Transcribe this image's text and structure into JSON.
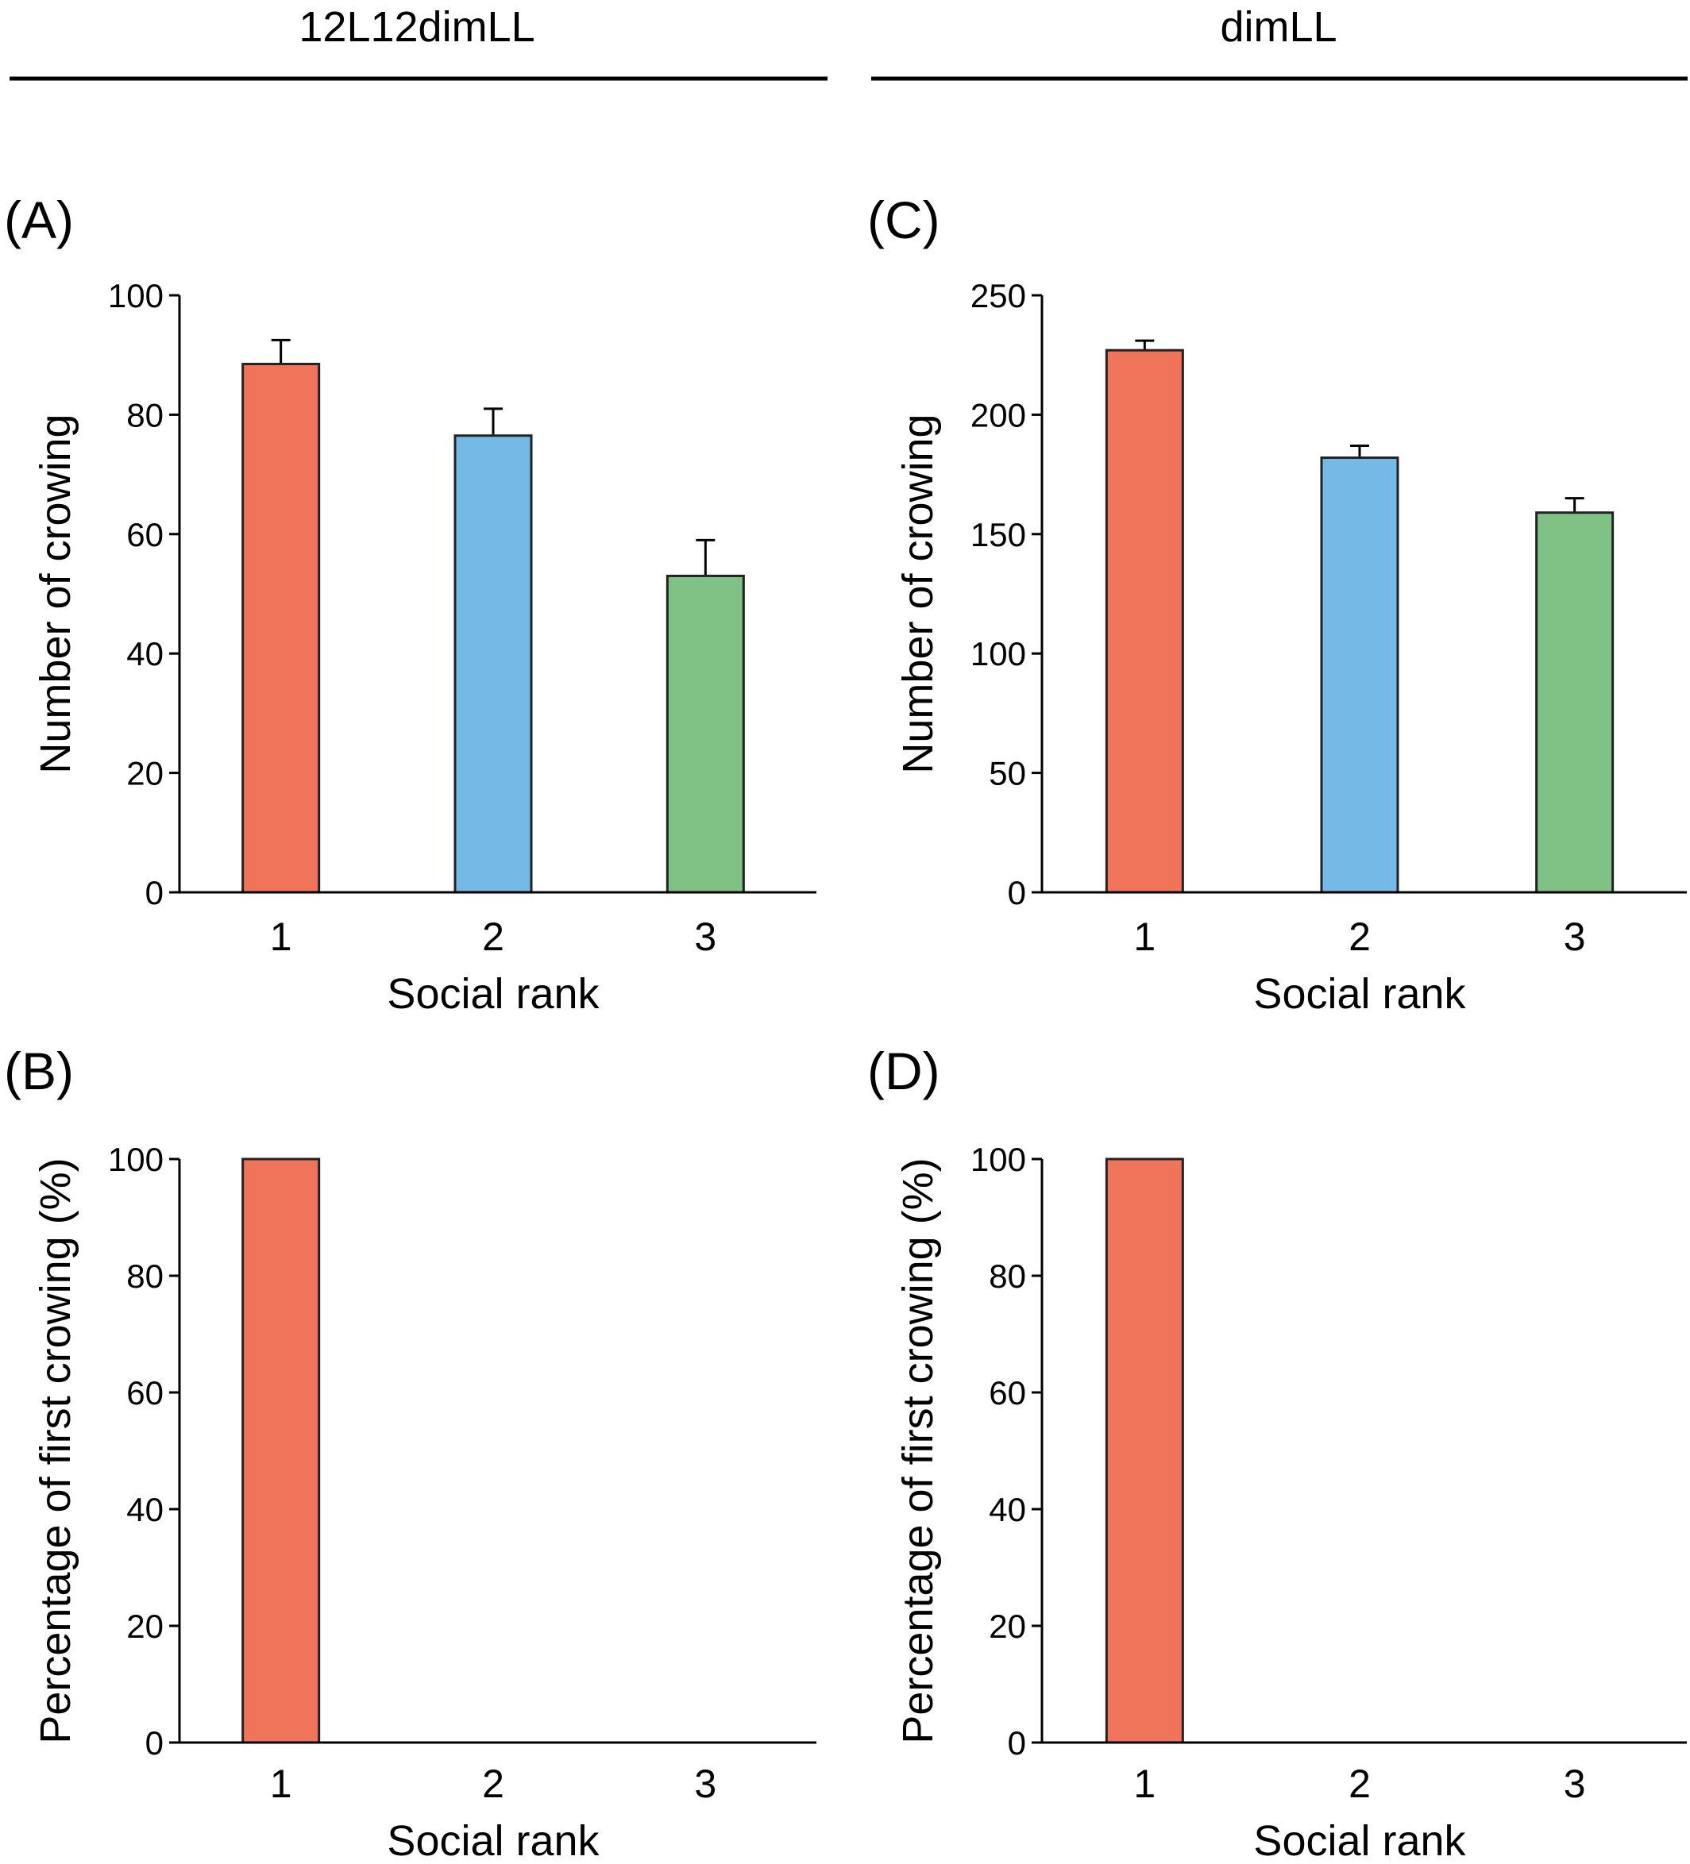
{
  "headers": {
    "left": "12L12dimLL",
    "right": "dimLL"
  },
  "colors": {
    "rank1": "#F07459",
    "rank2": "#75B9E6",
    "rank3": "#80C285",
    "axis": "#000000"
  },
  "chart_data": [
    {
      "panel": "(A)",
      "type": "bar",
      "condition": "12L12dimLL",
      "categories": [
        "1",
        "2",
        "3"
      ],
      "values": [
        88.5,
        76.5,
        53
      ],
      "errors": [
        4,
        4.5,
        6
      ],
      "ylim": [
        0,
        100
      ],
      "yticks": [
        0,
        20,
        40,
        60,
        80,
        100
      ],
      "xlabel": "Social rank",
      "ylabel": "Number of crowing"
    },
    {
      "panel": "(B)",
      "type": "bar",
      "condition": "12L12dimLL",
      "categories": [
        "1",
        "2",
        "3"
      ],
      "values": [
        100,
        0,
        0
      ],
      "errors": [
        0,
        0,
        0
      ],
      "ylim": [
        0,
        100
      ],
      "yticks": [
        0,
        20,
        40,
        60,
        80,
        100
      ],
      "xlabel": "Social rank",
      "ylabel": "Percentage of first crowing (%)"
    },
    {
      "panel": "(C)",
      "type": "bar",
      "condition": "dimLL",
      "categories": [
        "1",
        "2",
        "3"
      ],
      "values": [
        227,
        182,
        159
      ],
      "errors": [
        4,
        5,
        6
      ],
      "ylim": [
        0,
        250
      ],
      "yticks": [
        0,
        50,
        100,
        150,
        200,
        250
      ],
      "xlabel": "Social rank",
      "ylabel": "Number of crowing"
    },
    {
      "panel": "(D)",
      "type": "bar",
      "condition": "dimLL",
      "categories": [
        "1",
        "2",
        "3"
      ],
      "values": [
        100,
        0,
        0
      ],
      "errors": [
        0,
        0,
        0
      ],
      "ylim": [
        0,
        100
      ],
      "yticks": [
        0,
        20,
        40,
        60,
        80,
        100
      ],
      "xlabel": "Social rank",
      "ylabel": "Percentage of first crowing (%)"
    }
  ]
}
